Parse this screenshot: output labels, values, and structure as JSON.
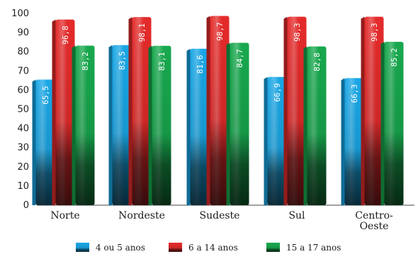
{
  "chart_data": {
    "type": "bar",
    "categories": [
      "Norte",
      "Nordeste",
      "Sudeste",
      "Sul",
      "Centro-\nOeste"
    ],
    "series": [
      {
        "name": "4 ou 5 anos",
        "values": [
          65.5,
          83.5,
          81.6,
          66.9,
          66.3
        ],
        "labels": [
          "65,5",
          "83,5",
          "81,6",
          "66,9",
          "66,3"
        ],
        "color": "#1aa7e6"
      },
      {
        "name": "6 a 14 anos",
        "values": [
          96.8,
          98.1,
          98.7,
          98.3,
          98.3
        ],
        "labels": [
          "96,8",
          "98,1",
          "98,7",
          "98,3",
          "98,3"
        ],
        "color": "#e52b2b"
      },
      {
        "name": "15 a 17 anos",
        "values": [
          83.2,
          83.1,
          84.7,
          82.8,
          85.2
        ],
        "labels": [
          "83,2",
          "83,1",
          "84,7",
          "82,8",
          "85,2"
        ],
        "color": "#18a84e"
      }
    ],
    "ylim": [
      0,
      100
    ],
    "yticks": [
      0,
      10,
      20,
      30,
      40,
      50,
      60,
      70,
      80,
      90,
      100
    ],
    "grid": false,
    "legend": "bottom"
  }
}
